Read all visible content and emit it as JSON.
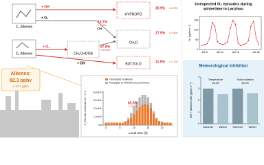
{
  "pathways": {
    "c4_alkenes": "C₄ Alkenes",
    "c3_alkenes": "C₃ Alkenes",
    "plus_oh_top": "+ OH",
    "plus_o3": "+ O₃",
    "plus_o2": "+ O₂",
    "plus_oh_bottom": "+ OH",
    "oh_branch": "OH",
    "intermediate": "CH₃CHOOB"
  },
  "products": [
    {
      "name": "HYPROPO",
      "share": "30.9%",
      "error": "± 2.9%"
    },
    {
      "name": "CH₂O",
      "share": "27.9%",
      "error": "± 3.6%"
    },
    {
      "name": "BUT2OLO",
      "share": "11.5%",
      "error": "± 1.1%"
    }
  ],
  "branches": [
    {
      "share": "10.7%",
      "error": "± 1.4%"
    },
    {
      "share": "87.8%",
      "error": "± 10.5%"
    }
  ],
  "alkenes": {
    "label": "Alkenes:",
    "value": "82.3 ppbv",
    "error": "± 10.1 ppbv"
  },
  "rox_chart": {
    "type": "bar",
    "stacked": true,
    "xlabel": "Local time (h)",
    "ylabel": "P_ROx rate (molecule cm⁻³ s⁻¹)",
    "x": [
      0,
      1,
      2,
      3,
      4,
      5,
      6,
      7,
      8,
      9,
      10,
      11,
      12,
      13,
      14,
      15,
      16,
      17,
      18,
      19,
      20,
      21,
      22,
      23
    ],
    "series": [
      {
        "name": "Ozonolysis of alkenes",
        "color": "#e8782a",
        "values": [
          300000,
          300000,
          300000,
          300000,
          300000,
          300000,
          300000,
          400000,
          600000,
          900000,
          1300000,
          1800000,
          2200000,
          2500000,
          2600000,
          2500000,
          2100000,
          1400000,
          800000,
          500000,
          400000,
          300000,
          300000,
          300000
        ]
      },
      {
        "name": "Photolysis of HONO/H₂O₂/O₃/OVOCs",
        "color": "#b5b5b5",
        "values": [
          0,
          0,
          0,
          0,
          0,
          0,
          0,
          100000,
          300000,
          600000,
          900000,
          1100000,
          1200000,
          1200000,
          1100000,
          900000,
          600000,
          300000,
          100000,
          0,
          0,
          0,
          0,
          0
        ]
      }
    ],
    "annotation": "65.8%",
    "annotation_error": "± 11.6%",
    "xlim": [
      -1,
      24
    ],
    "xticks": [
      0,
      5,
      10,
      15,
      20
    ],
    "ylim": [
      0,
      4200000
    ],
    "yticks": [
      {
        "value": 0,
        "label": "0.0"
      },
      {
        "value": 1000000,
        "label": "1.0×10⁶"
      },
      {
        "value": 2000000,
        "label": "2.0×10⁶"
      },
      {
        "value": 3000000,
        "label": "3.0×10⁶"
      },
      {
        "value": 4000000,
        "label": "4.0×10⁶"
      }
    ]
  },
  "o3_chart": {
    "type": "line",
    "title": [
      "Unexpected O₃ episodes during",
      "wintertime in Lanzhou"
    ],
    "ylabel": "O₃ (ppbv h⁻¹)",
    "color": "#d62d2d",
    "x": [
      5,
      6,
      7,
      8,
      9,
      10,
      11,
      12,
      13,
      14,
      15,
      16,
      17,
      18,
      19,
      20,
      21,
      22,
      23,
      24,
      25,
      26,
      27
    ],
    "values": [
      20,
      25,
      30,
      60,
      140,
      120,
      40,
      30,
      25,
      30,
      40,
      110,
      150,
      130,
      35,
      20,
      25,
      30,
      45,
      120,
      145,
      60,
      25
    ],
    "xlim": [
      4,
      28
    ],
    "xticks": [
      {
        "value": 6,
        "label": "Jan 6"
      },
      {
        "value": 12,
        "label": "Jan 12"
      },
      {
        "value": 18,
        "label": "Jan 18"
      },
      {
        "value": 26,
        "label": "Jan 26"
      }
    ],
    "ylim": [
      0,
      170
    ],
    "yticks": [
      0,
      50,
      100,
      150
    ]
  },
  "met_chart": {
    "type": "bar",
    "title": "Meteorological inhibition",
    "ylabel": "OH + alkenes rate (ppbv h⁻¹)",
    "categories": [
      "Summer",
      "Winter",
      "Summer",
      "Winter"
    ],
    "values": [
      3.0,
      2.5,
      3.0,
      2.6
    ],
    "colors": [
      "#7f9aa6",
      "#a9c4cf",
      "#7f9aa6",
      "#a9c4cf"
    ],
    "annotations": [
      {
        "label": "Temperature",
        "value": "15.3%"
      },
      {
        "label": "Solar radiation",
        "value": "13.0%"
      }
    ],
    "ylim": [
      0,
      4
    ],
    "yticks": [
      0,
      1,
      2,
      3,
      4
    ]
  }
}
